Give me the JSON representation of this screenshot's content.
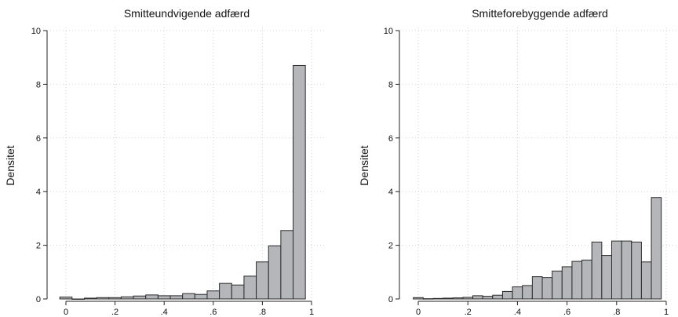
{
  "chart_data": [
    {
      "type": "bar",
      "title": "Smitteundvigende adfærd",
      "xlabel": "",
      "ylabel": "Densitet",
      "xlim": [
        0,
        1
      ],
      "ylim": [
        0,
        10
      ],
      "x_ticks": [
        0,
        0.2,
        0.4,
        0.6,
        0.8,
        1
      ],
      "x_tick_labels": [
        "0",
        ".2",
        ".4",
        ".6",
        ".8",
        "1"
      ],
      "y_ticks": [
        0,
        2,
        4,
        6,
        8,
        10
      ],
      "y_tick_labels": [
        "0",
        "2",
        "4",
        "6",
        "8",
        "10"
      ],
      "grid": true,
      "bar_color": "#b4b6b9",
      "bins": [
        {
          "x0": -0.025,
          "x1": 0.025,
          "value": 0.07
        },
        {
          "x0": 0.025,
          "x1": 0.075,
          "value": 0.0
        },
        {
          "x0": 0.075,
          "x1": 0.125,
          "value": 0.03
        },
        {
          "x0": 0.125,
          "x1": 0.175,
          "value": 0.05
        },
        {
          "x0": 0.175,
          "x1": 0.225,
          "value": 0.05
        },
        {
          "x0": 0.225,
          "x1": 0.275,
          "value": 0.08
        },
        {
          "x0": 0.275,
          "x1": 0.325,
          "value": 0.11
        },
        {
          "x0": 0.325,
          "x1": 0.375,
          "value": 0.15
        },
        {
          "x0": 0.375,
          "x1": 0.425,
          "value": 0.12
        },
        {
          "x0": 0.425,
          "x1": 0.475,
          "value": 0.12
        },
        {
          "x0": 0.475,
          "x1": 0.525,
          "value": 0.2
        },
        {
          "x0": 0.525,
          "x1": 0.575,
          "value": 0.17
        },
        {
          "x0": 0.575,
          "x1": 0.625,
          "value": 0.3
        },
        {
          "x0": 0.625,
          "x1": 0.675,
          "value": 0.58
        },
        {
          "x0": 0.675,
          "x1": 0.725,
          "value": 0.52
        },
        {
          "x0": 0.725,
          "x1": 0.775,
          "value": 0.85
        },
        {
          "x0": 0.775,
          "x1": 0.825,
          "value": 1.38
        },
        {
          "x0": 0.825,
          "x1": 0.875,
          "value": 1.98
        },
        {
          "x0": 0.875,
          "x1": 0.925,
          "value": 2.55
        },
        {
          "x0": 0.925,
          "x1": 0.975,
          "value": 8.7
        }
      ]
    },
    {
      "type": "bar",
      "title": "Smitteforebyggende adfærd",
      "xlabel": "",
      "ylabel": "Densitet",
      "xlim": [
        0,
        1
      ],
      "ylim": [
        0,
        10
      ],
      "x_ticks": [
        0,
        0.2,
        0.4,
        0.6,
        0.8,
        1
      ],
      "x_tick_labels": [
        "0",
        ".2",
        ".4",
        ".6",
        ".8",
        "1"
      ],
      "y_ticks": [
        0,
        2,
        4,
        6,
        8,
        10
      ],
      "y_tick_labels": [
        "0",
        "2",
        "4",
        "6",
        "8",
        "10"
      ],
      "grid": true,
      "bar_color": "#b4b6b9",
      "bins": [
        {
          "x0": -0.02,
          "x1": 0.02,
          "value": 0.05
        },
        {
          "x0": 0.02,
          "x1": 0.06,
          "value": 0.01
        },
        {
          "x0": 0.06,
          "x1": 0.1,
          "value": 0.02
        },
        {
          "x0": 0.1,
          "x1": 0.14,
          "value": 0.03
        },
        {
          "x0": 0.14,
          "x1": 0.18,
          "value": 0.04
        },
        {
          "x0": 0.18,
          "x1": 0.22,
          "value": 0.06
        },
        {
          "x0": 0.22,
          "x1": 0.26,
          "value": 0.12
        },
        {
          "x0": 0.26,
          "x1": 0.3,
          "value": 0.1
        },
        {
          "x0": 0.3,
          "x1": 0.34,
          "value": 0.14
        },
        {
          "x0": 0.34,
          "x1": 0.38,
          "value": 0.28
        },
        {
          "x0": 0.38,
          "x1": 0.42,
          "value": 0.45
        },
        {
          "x0": 0.42,
          "x1": 0.46,
          "value": 0.5
        },
        {
          "x0": 0.46,
          "x1": 0.5,
          "value": 0.83
        },
        {
          "x0": 0.5,
          "x1": 0.54,
          "value": 0.8
        },
        {
          "x0": 0.54,
          "x1": 0.58,
          "value": 1.04
        },
        {
          "x0": 0.58,
          "x1": 0.62,
          "value": 1.2
        },
        {
          "x0": 0.62,
          "x1": 0.66,
          "value": 1.4
        },
        {
          "x0": 0.66,
          "x1": 0.7,
          "value": 1.45
        },
        {
          "x0": 0.7,
          "x1": 0.74,
          "value": 2.12
        },
        {
          "x0": 0.74,
          "x1": 0.78,
          "value": 1.62
        },
        {
          "x0": 0.78,
          "x1": 0.82,
          "value": 2.16
        },
        {
          "x0": 0.82,
          "x1": 0.86,
          "value": 2.16
        },
        {
          "x0": 0.86,
          "x1": 0.9,
          "value": 2.12
        },
        {
          "x0": 0.9,
          "x1": 0.94,
          "value": 1.38
        },
        {
          "x0": 0.94,
          "x1": 0.98,
          "value": 3.78
        }
      ]
    }
  ]
}
